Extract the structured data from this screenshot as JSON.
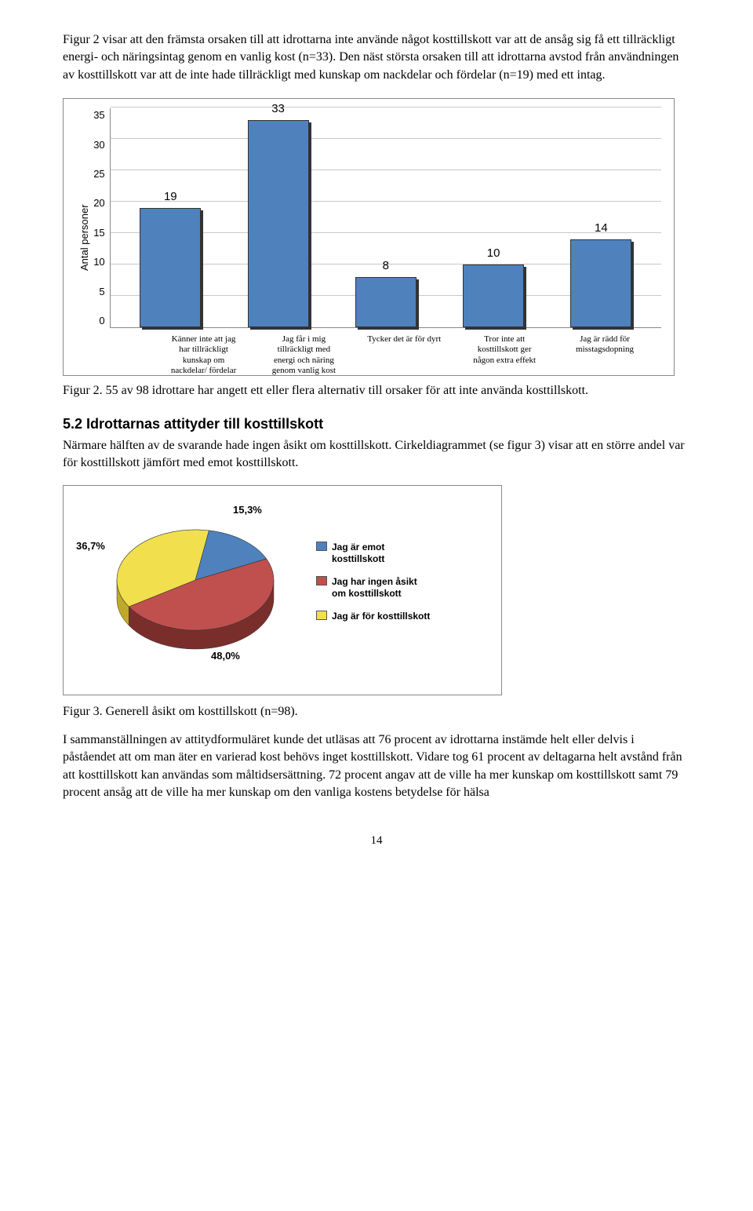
{
  "intro_para": "Figur 2 visar att den främsta orsaken till att idrottarna inte använde något kosttillskott var att de ansåg sig få ett tillräckligt energi- och näringsintag genom en vanlig kost (n=33). Den näst största orsaken till att idrottarna avstod från användningen av kosttillskott var att de inte hade tillräckligt med kunskap om nackdelar och fördelar (n=19) med ett intag.",
  "bar_chart": {
    "y_axis_label": "Antal personer",
    "ymin": 0,
    "ymax": 35,
    "ytick_step": 5,
    "grid_color": "#c8c8c8",
    "bar_color": "#4f81bd",
    "shadow_color": "#333333",
    "categories": [
      "Känner inte att jag har tillräckligt kunskap om nackdelar/ fördelar",
      "Jag får i mig tillräckligt med energi och näring genom vanlig kost",
      "Tycker det är för dyrt",
      "Tror inte att kosttillskott ger någon extra effekt",
      "Jag är rädd för misstagsdopning"
    ],
    "values": [
      19,
      33,
      8,
      10,
      14
    ]
  },
  "fig2_caption": "Figur 2. 55 av 98 idrottare har angett ett eller flera alternativ till orsaker för att inte använda kosttillskott.",
  "heading_52": "5.2 Idrottarnas attityder till kosttillskott",
  "para_52": "Närmare hälften av de svarande hade ingen åsikt om kosttillskott. Cirkeldiagrammet (se figur 3) visar att en större andel var för kosttillskott jämfört med emot kosttillskott.",
  "pie_chart": {
    "slices": [
      {
        "label": "Jag är emot kosttillskott",
        "pct": "15,3%",
        "value": 15.3,
        "color": "#4f81bd"
      },
      {
        "label": "Jag har ingen åsikt om kosttillskott",
        "pct": "48,0%",
        "value": 48.0,
        "color": "#c0504d"
      },
      {
        "label": "Jag är för kosttillskott",
        "pct": "36,7%",
        "value": 36.7,
        "color": "#f2df4e"
      }
    ],
    "side_color_blue": "#2a4d78",
    "side_color_red": "#7a2e2c",
    "side_color_yellow": "#bfa92a"
  },
  "fig3_caption": "Figur 3. Generell åsikt om kosttillskott (n=98).",
  "closing_para": "I sammanställningen av attitydformuläret kunde det utläsas att 76 procent av idrottarna instämde helt eller delvis i påståendet att om man äter en varierad kost behövs inget kosttillskott. Vidare tog 61 procent av deltagarna helt avstånd från att kosttillskott kan användas som måltidsersättning. 72 procent angav att de ville ha mer kunskap om kosttillskott samt 79 procent ansåg att de ville ha mer kunskap om den vanliga kostens betydelse för hälsa",
  "page_number": "14"
}
